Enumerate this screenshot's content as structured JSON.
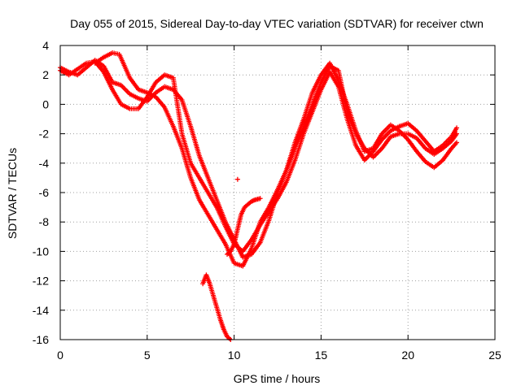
{
  "chart_data": {
    "type": "scatter",
    "title": "Day 055 of 2015, Sidereal Day-to-day VTEC variation (SDTVAR) for receiver ctwn",
    "xlabel": "GPS time / hours",
    "ylabel": "SDTVAR / TECUs",
    "xlim": [
      0,
      25
    ],
    "ylim": [
      -16,
      4
    ],
    "xticks": [
      0,
      5,
      10,
      15,
      20,
      25
    ],
    "yticks": [
      -16,
      -14,
      -12,
      -10,
      -8,
      -6,
      -4,
      -2,
      0,
      2,
      4
    ],
    "grid": true,
    "legend": "none",
    "marker": "plus",
    "color": "#ff0000",
    "series": [
      {
        "x": [
          0.0,
          0.5,
          1.0,
          1.5,
          2.0,
          2.5,
          3.0,
          3.5,
          4.0,
          4.5,
          5.0,
          5.5,
          6.0,
          6.5,
          7.0,
          7.5,
          8.0,
          8.5,
          9.0,
          9.5,
          10.0,
          10.5,
          11.0,
          11.5,
          12.0,
          12.5,
          13.0,
          13.5,
          14.0,
          14.5,
          15.0,
          15.5,
          16.0,
          16.5,
          17.0,
          17.5,
          18.0,
          18.5,
          19.0,
          19.5,
          20.0,
          20.5,
          21.0,
          21.5,
          22.0,
          22.5,
          22.8
        ],
        "y": [
          2.5,
          2.2,
          2.0,
          2.5,
          3.0,
          2.6,
          1.5,
          1.3,
          0.7,
          0.4,
          0.2,
          0.8,
          1.2,
          1.0,
          0.3,
          -1.5,
          -3.5,
          -5.0,
          -6.5,
          -8.0,
          -9.2,
          -10.4,
          -10.2,
          -9.4,
          -7.9,
          -6.0,
          -4.5,
          -3.0,
          -1.6,
          0.0,
          1.5,
          2.6,
          2.3,
          -0.5,
          -2.0,
          -3.0,
          -3.6,
          -3.0,
          -2.2,
          -2.0,
          -2.0,
          -2.3,
          -3.0,
          -3.4,
          -3.0,
          -2.5,
          -2.0
        ]
      },
      {
        "x": [
          0.0,
          0.5,
          1.0,
          1.5,
          2.0,
          2.5,
          3.0,
          3.5,
          4.0,
          4.5,
          5.0,
          5.5,
          6.0,
          6.5,
          7.0,
          7.5,
          8.0,
          8.5,
          9.0,
          9.5,
          10.0,
          10.5,
          11.0,
          11.5,
          12.0,
          12.5,
          13.0,
          13.5,
          14.0,
          14.5,
          15.0,
          15.5,
          16.0,
          16.5,
          17.0,
          17.5,
          18.0,
          18.5,
          19.0,
          19.5,
          20.0,
          20.5,
          21.0,
          21.5,
          22.0,
          22.5,
          22.8
        ],
        "y": [
          2.3,
          2.0,
          2.4,
          2.8,
          2.9,
          2.2,
          1.0,
          0.0,
          -0.3,
          -0.3,
          0.5,
          1.5,
          2.0,
          1.8,
          -2.0,
          -4.0,
          -5.0,
          -6.0,
          -7.0,
          -8.3,
          -9.5,
          -10.0,
          -9.2,
          -8.2,
          -7.3,
          -6.4,
          -5.3,
          -3.8,
          -2.0,
          -0.5,
          1.0,
          2.2,
          1.2,
          -1.0,
          -2.8,
          -3.8,
          -3.2,
          -2.4,
          -1.8,
          -1.5,
          -1.3,
          -1.8,
          -2.5,
          -3.2,
          -2.8,
          -2.2,
          -1.6
        ]
      },
      {
        "x": [
          2.0,
          2.5,
          3.0,
          3.4,
          4.0,
          4.5,
          5.0,
          5.5,
          6.0,
          6.5,
          7.0,
          7.5,
          8.0,
          8.5,
          9.0,
          9.5,
          10.0,
          10.5,
          11.0,
          11.5,
          12.0,
          12.5,
          13.0,
          13.5,
          14.0,
          14.5,
          15.0,
          15.5,
          16.0,
          16.5,
          17.0,
          17.5,
          18.0,
          18.5,
          19.0,
          19.5,
          20.0,
          20.5,
          21.0,
          21.5,
          22.0,
          22.5,
          22.8
        ],
        "y": [
          2.8,
          3.2,
          3.5,
          3.4,
          1.8,
          1.0,
          0.8,
          0.5,
          -0.2,
          -1.5,
          -3.0,
          -5.0,
          -6.5,
          -7.5,
          -8.5,
          -9.5,
          -10.8,
          -11.0,
          -9.8,
          -8.0,
          -7.0,
          -5.8,
          -4.5,
          -2.6,
          -1.0,
          0.8,
          2.0,
          2.8,
          1.6,
          0.0,
          -1.8,
          -3.2,
          -3.0,
          -2.0,
          -1.4,
          -1.8,
          -2.4,
          -3.2,
          -3.9,
          -4.3,
          -3.8,
          -3.0,
          -2.6
        ]
      },
      {
        "x": [
          9.6,
          9.8,
          10.0,
          10.2,
          10.4,
          10.6,
          10.8,
          11.0,
          11.2,
          11.5
        ],
        "y": [
          -10.2,
          -10.0,
          -9.5,
          -8.5,
          -7.5,
          -7.0,
          -6.8,
          -6.6,
          -6.5,
          -6.4
        ]
      },
      {
        "x": [
          8.2,
          8.4,
          8.6,
          8.8,
          9.0,
          9.2,
          9.4,
          9.6,
          9.8
        ],
        "y": [
          -12.2,
          -11.6,
          -12.2,
          -13.0,
          -13.8,
          -14.6,
          -15.3,
          -15.8,
          -16.0
        ]
      },
      {
        "x": [
          10.2
        ],
        "y": [
          -5.1
        ]
      }
    ]
  }
}
